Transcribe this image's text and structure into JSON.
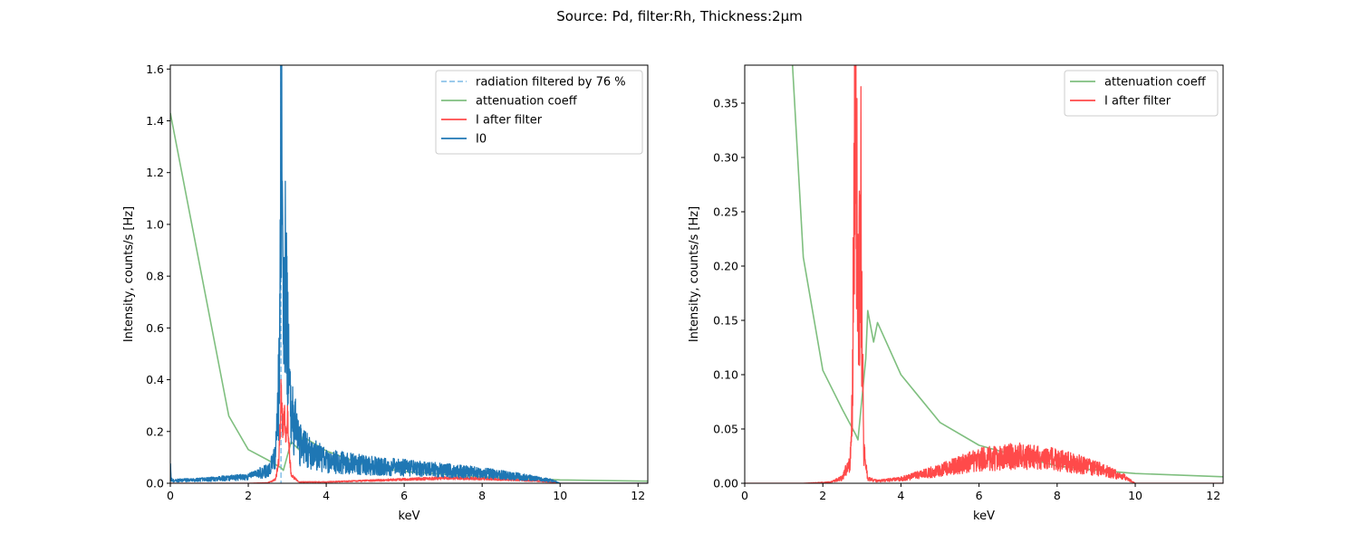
{
  "figure": {
    "title": "Source: Pd, filter:Rh, Thickness:2μm"
  },
  "chart_data": [
    {
      "type": "line",
      "title": "",
      "xlabel": "keV",
      "ylabel": "Intensity, counts/s [Hz]",
      "xlim": [
        0,
        12.25
      ],
      "ylim": [
        0,
        1.615
      ],
      "xticks": [
        0,
        2,
        4,
        6,
        8,
        10,
        12
      ],
      "yticks": [
        0.0,
        0.2,
        0.4,
        0.6,
        0.8,
        1.0,
        1.2,
        1.4,
        1.6
      ],
      "ytick_labels": [
        "0.0",
        "0.2",
        "0.4",
        "0.6",
        "0.8",
        "1.0",
        "1.2",
        "1.4",
        "1.6"
      ],
      "grid": false,
      "legend_position": "top-right",
      "series": [
        {
          "name": "radiation filtered by 76 %",
          "kind": "vline",
          "x": 2.84,
          "color": "#8ec4ea",
          "dash": true
        },
        {
          "name": "attenuation coeff",
          "color": "#7fbf7f",
          "x": [
            0.0,
            1.5,
            2.0,
            2.5,
            2.84,
            2.9,
            3.1,
            3.3,
            3.4,
            4.0,
            5.0,
            6.0,
            8.0,
            10.0,
            12.25
          ],
          "y": [
            1.43,
            0.26,
            0.13,
            0.09,
            0.06,
            0.05,
            0.16,
            0.13,
            0.18,
            0.125,
            0.07,
            0.045,
            0.025,
            0.013,
            0.008
          ]
        },
        {
          "name": "I after filter",
          "color": "#ff4a4a",
          "noise": 0.3,
          "x": [
            0.0,
            2.0,
            2.5,
            2.7,
            2.78,
            2.82,
            2.84,
            2.88,
            2.92,
            2.96,
            3.0,
            3.04,
            3.1,
            3.3,
            4.0,
            5.0,
            6.0,
            7.0,
            8.0,
            9.0,
            9.8,
            10.0,
            12.25
          ],
          "y": [
            0.0,
            0.0,
            0.002,
            0.015,
            0.08,
            0.22,
            0.35,
            0.22,
            0.27,
            0.2,
            0.275,
            0.15,
            0.03,
            0.005,
            0.005,
            0.01,
            0.015,
            0.02,
            0.018,
            0.012,
            0.005,
            0.0,
            0.0
          ]
        },
        {
          "name": "I0",
          "color": "#1f77b4",
          "noise": 0.55,
          "x": [
            0.0,
            0.02,
            0.05,
            1.0,
            2.0,
            2.5,
            2.7,
            2.78,
            2.82,
            2.84,
            2.87,
            2.9,
            2.96,
            3.0,
            3.05,
            3.15,
            3.3,
            4.0,
            5.0,
            6.0,
            7.0,
            8.0,
            9.0,
            9.8,
            10.0,
            12.25
          ],
          "y": [
            0.1,
            0.02,
            0.01,
            0.015,
            0.025,
            0.05,
            0.1,
            0.35,
            0.95,
            1.47,
            1.0,
            0.6,
            0.84,
            0.7,
            0.3,
            0.25,
            0.15,
            0.085,
            0.07,
            0.06,
            0.05,
            0.04,
            0.025,
            0.01,
            0.0,
            0.0
          ]
        }
      ]
    },
    {
      "type": "line",
      "title": "",
      "xlabel": "keV",
      "ylabel": "Intensity, counts/s [Hz]",
      "xlim": [
        0,
        12.25
      ],
      "ylim": [
        0,
        0.385
      ],
      "xticks": [
        0,
        2,
        4,
        6,
        8,
        10,
        12
      ],
      "yticks": [
        0.0,
        0.05,
        0.1,
        0.15,
        0.2,
        0.25,
        0.3,
        0.35
      ],
      "ytick_labels": [
        "0.00",
        "0.05",
        "0.10",
        "0.15",
        "0.20",
        "0.25",
        "0.30",
        "0.35"
      ],
      "grid": false,
      "legend_position": "top-right",
      "series": [
        {
          "name": "attenuation coeff",
          "color": "#7fbf7f",
          "x": [
            1.2,
            1.5,
            2.0,
            2.5,
            2.84,
            2.9,
            3.1,
            3.15,
            3.3,
            3.4,
            4.0,
            5.0,
            6.0,
            7.0,
            8.0,
            9.0,
            10.0,
            12.25
          ],
          "y": [
            0.4,
            0.208,
            0.104,
            0.068,
            0.045,
            0.04,
            0.115,
            0.159,
            0.13,
            0.148,
            0.1,
            0.056,
            0.035,
            0.025,
            0.016,
            0.012,
            0.009,
            0.006
          ]
        },
        {
          "name": "I after filter",
          "color": "#ff4a4a",
          "noise": 0.5,
          "x": [
            0.0,
            1.5,
            2.2,
            2.5,
            2.7,
            2.76,
            2.8,
            2.84,
            2.88,
            2.91,
            2.94,
            2.97,
            3.0,
            3.05,
            3.15,
            3.4,
            4.0,
            5.0,
            6.0,
            7.0,
            8.0,
            9.0,
            9.7,
            10.0,
            12.25
          ],
          "y": [
            0.0,
            0.0,
            0.001,
            0.005,
            0.02,
            0.08,
            0.27,
            0.35,
            0.22,
            0.15,
            0.2,
            0.27,
            0.15,
            0.03,
            0.004,
            0.002,
            0.004,
            0.012,
            0.022,
            0.025,
            0.022,
            0.014,
            0.006,
            0.0,
            0.0
          ]
        }
      ]
    }
  ]
}
